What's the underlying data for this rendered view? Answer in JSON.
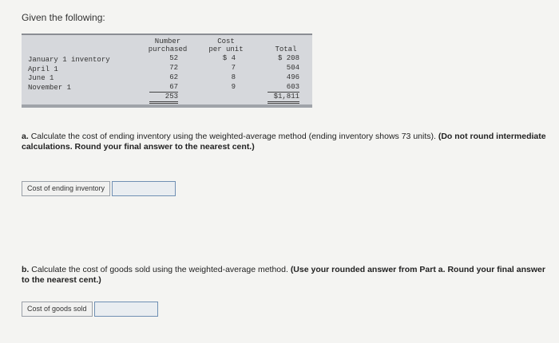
{
  "intro": "Given the following:",
  "table": {
    "headers": {
      "number": [
        "Number",
        "purchased"
      ],
      "cost": [
        "Cost",
        "per unit"
      ],
      "total": [
        "Total"
      ]
    },
    "rows": [
      {
        "label": "January 1 inventory",
        "number": "52",
        "cost": "$ 4",
        "total": "$  208"
      },
      {
        "label": "April 1",
        "number": "72",
        "cost": "7",
        "total": "504"
      },
      {
        "label": "June 1",
        "number": "62",
        "cost": "8",
        "total": "496"
      },
      {
        "label": "November 1",
        "number": "67",
        "cost": "9",
        "total": "603"
      }
    ],
    "totals": {
      "number": "253",
      "total": "$1,811"
    }
  },
  "part_a": {
    "prefix": "a.",
    "text": "Calculate the cost of ending inventory using the weighted-average method (ending inventory shows 73 units).",
    "bold": "(Do not round intermediate calculations. Round your final answer to the nearest cent.)",
    "field_label": "Cost of ending inventory",
    "field_value": ""
  },
  "part_b": {
    "prefix": "b.",
    "text": "Calculate the cost of goods sold using the weighted-average method.",
    "bold": "(Use your rounded answer from Part a. Round your final answer to the nearest cent.)",
    "field_label": "Cost of goods sold",
    "field_value": ""
  }
}
